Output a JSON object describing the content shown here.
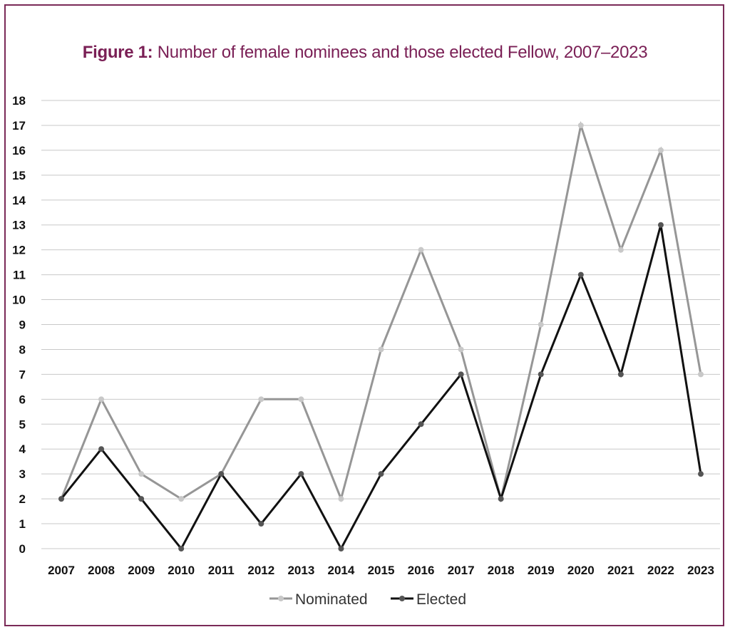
{
  "title": {
    "lead": "Figure 1:",
    "text": "Number of female nominees and those elected Fellow, 2007–2023"
  },
  "colors": {
    "frame": "#7a2a57",
    "title": "#7a1f55",
    "grid": "#c8c8c8",
    "nominated_line": "#969696",
    "nominated_marker": "#c8c8c8",
    "elected_line": "#111111",
    "elected_marker": "#555555"
  },
  "chart_data": {
    "type": "line",
    "title": "Figure 1: Number of female nominees and those elected Fellow, 2007–2023",
    "xlabel": "",
    "ylabel": "",
    "ylim": [
      0,
      18
    ],
    "grid": true,
    "legend_position": "bottom",
    "x": [
      "2007",
      "2008",
      "2009",
      "2010",
      "2011",
      "2012",
      "2013",
      "2014",
      "2015",
      "2016",
      "2017",
      "2018",
      "2019",
      "2020",
      "2021",
      "2022",
      "2023"
    ],
    "y_ticks": [
      0,
      1,
      2,
      3,
      4,
      5,
      6,
      7,
      8,
      9,
      10,
      11,
      12,
      13,
      14,
      15,
      16,
      17,
      18
    ],
    "series": [
      {
        "name": "Nominated",
        "values": [
          2,
          6,
          3,
          2,
          3,
          6,
          6,
          2,
          8,
          12,
          8,
          2,
          9,
          17,
          12,
          16,
          7
        ]
      },
      {
        "name": "Elected",
        "values": [
          2,
          4,
          2,
          0,
          3,
          1,
          3,
          0,
          3,
          5,
          7,
          2,
          7,
          11,
          7,
          13,
          3
        ]
      }
    ]
  }
}
